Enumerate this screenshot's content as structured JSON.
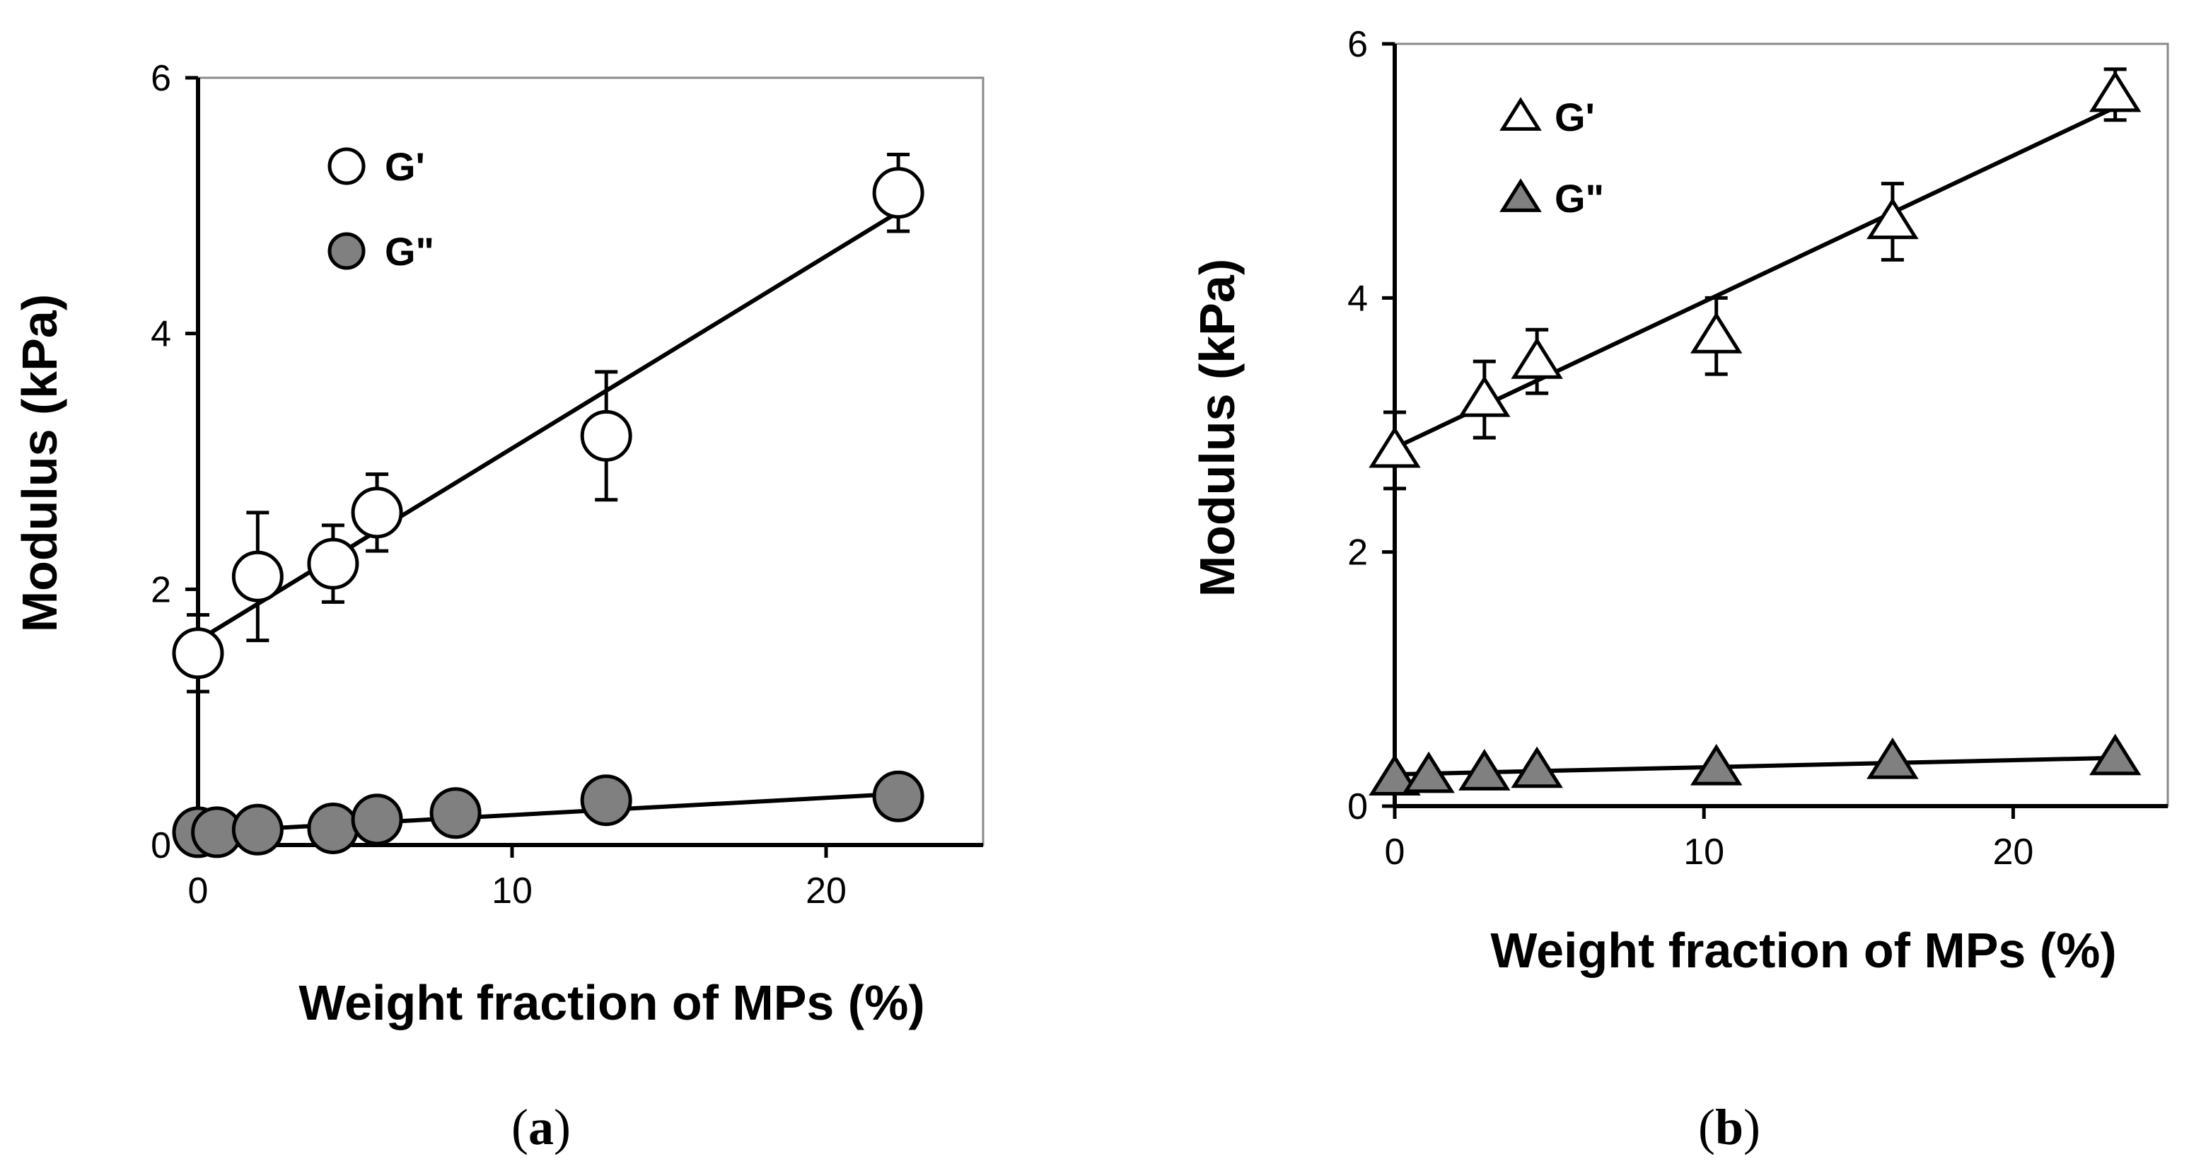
{
  "chart_data": [
    {
      "id": "a",
      "type": "scatter",
      "panel_label": "(a)",
      "panel_letter": "a",
      "xlabel": "Weight fraction of MPs (%)",
      "ylabel": "Modulus (kPa)",
      "xlim": [
        0,
        25
      ],
      "ylim": [
        0,
        6
      ],
      "x_ticks": [
        0,
        10,
        20
      ],
      "y_ticks": [
        0,
        2,
        4,
        6
      ],
      "legend_position": "top-left",
      "marker": "circle",
      "series": [
        {
          "name": "G'",
          "fill": "#ffffff",
          "points": [
            {
              "x": 0,
              "y": 1.5,
              "err": 0.3
            },
            {
              "x": 1.9,
              "y": 2.1,
              "err": 0.5
            },
            {
              "x": 4.3,
              "y": 2.2,
              "err": 0.3
            },
            {
              "x": 5.7,
              "y": 2.6,
              "err": 0.3
            },
            {
              "x": 13.0,
              "y": 3.2,
              "err": 0.5
            },
            {
              "x": 22.3,
              "y": 5.1,
              "err": 0.3
            }
          ],
          "fit": {
            "x": [
              0,
              22.3
            ],
            "y": [
              1.6,
              4.95
            ]
          }
        },
        {
          "name": "G\"",
          "fill": "#808080",
          "points": [
            {
              "x": 0,
              "y": 0.1
            },
            {
              "x": 0.6,
              "y": 0.1
            },
            {
              "x": 1.9,
              "y": 0.12
            },
            {
              "x": 4.3,
              "y": 0.13
            },
            {
              "x": 5.7,
              "y": 0.2
            },
            {
              "x": 8.2,
              "y": 0.25
            },
            {
              "x": 13.0,
              "y": 0.35
            },
            {
              "x": 22.3,
              "y": 0.38
            }
          ],
          "fit": {
            "x": [
              0,
              22.3
            ],
            "y": [
              0.1,
              0.4
            ]
          }
        }
      ]
    },
    {
      "id": "b",
      "type": "scatter",
      "panel_label": "(b)",
      "panel_letter": "b",
      "xlabel": "Weight fraction of MPs (%)",
      "ylabel": "Modulus (kPa)",
      "xlim": [
        0,
        25
      ],
      "ylim": [
        0,
        6
      ],
      "x_ticks": [
        0,
        10,
        20
      ],
      "y_ticks": [
        0,
        2,
        4,
        6
      ],
      "legend_position": "top-left",
      "marker": "triangle",
      "series": [
        {
          "name": "G'",
          "fill": "#ffffff",
          "points": [
            {
              "x": 0,
              "y": 2.8,
              "err": 0.3
            },
            {
              "x": 2.9,
              "y": 3.2,
              "err": 0.3
            },
            {
              "x": 4.6,
              "y": 3.5,
              "err": 0.25
            },
            {
              "x": 10.4,
              "y": 3.7,
              "err": 0.3
            },
            {
              "x": 16.1,
              "y": 4.6,
              "err": 0.3
            },
            {
              "x": 23.3,
              "y": 5.6,
              "err": 0.2
            }
          ],
          "fit": {
            "x": [
              0,
              23.3
            ],
            "y": [
              2.82,
              5.5
            ]
          }
        },
        {
          "name": "G\"",
          "fill": "#808080",
          "points": [
            {
              "x": 0,
              "y": 0.22
            },
            {
              "x": 1.1,
              "y": 0.24
            },
            {
              "x": 2.9,
              "y": 0.26
            },
            {
              "x": 4.6,
              "y": 0.28
            },
            {
              "x": 10.4,
              "y": 0.3
            },
            {
              "x": 16.1,
              "y": 0.35
            },
            {
              "x": 23.3,
              "y": 0.38
            }
          ],
          "fit": {
            "x": [
              0,
              23.3
            ],
            "y": [
              0.25,
              0.38
            ]
          }
        }
      ]
    }
  ]
}
